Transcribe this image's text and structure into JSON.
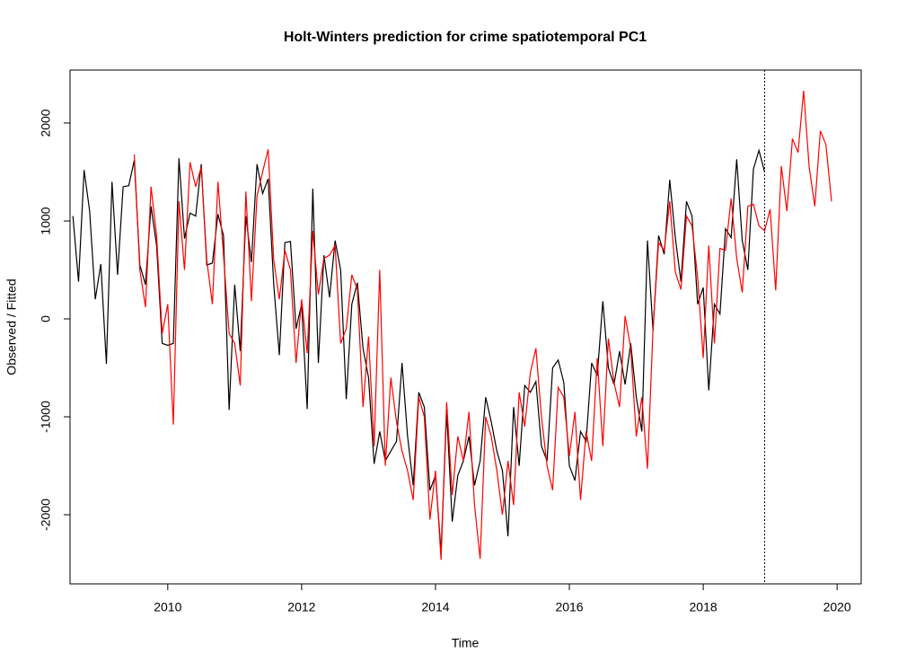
{
  "chart_data": {
    "type": "line",
    "title": "Holt-Winters prediction for crime spatiotemporal PC1",
    "x_label": "Time",
    "y_label": "Observed / Fitted",
    "xlim": [
      2008.54,
      2020.36
    ],
    "ylim": [
      -2706,
      2541
    ],
    "xticks": [
      2010,
      2012,
      2014,
      2016,
      2018,
      2020
    ],
    "yticks": [
      -2000,
      -1000,
      0,
      1000,
      2000
    ],
    "vline": 2018.917,
    "series": [
      {
        "color": "#000000",
        "x": [
          2008.583,
          2008.667,
          2008.75,
          2008.833,
          2008.917,
          2009.0,
          2009.083,
          2009.167,
          2009.25,
          2009.333,
          2009.417,
          2009.5,
          2009.583,
          2009.667,
          2009.75,
          2009.833,
          2009.917,
          2010.0,
          2010.083,
          2010.167,
          2010.25,
          2010.333,
          2010.417,
          2010.5,
          2010.583,
          2010.667,
          2010.75,
          2010.833,
          2010.917,
          2011.0,
          2011.083,
          2011.167,
          2011.25,
          2011.333,
          2011.417,
          2011.5,
          2011.583,
          2011.667,
          2011.75,
          2011.833,
          2011.917,
          2012.0,
          2012.083,
          2012.167,
          2012.25,
          2012.333,
          2012.417,
          2012.5,
          2012.583,
          2012.667,
          2012.75,
          2012.833,
          2012.917,
          2013.0,
          2013.083,
          2013.167,
          2013.25,
          2013.333,
          2013.417,
          2013.5,
          2013.583,
          2013.667,
          2013.75,
          2013.833,
          2013.917,
          2014.0,
          2014.083,
          2014.167,
          2014.25,
          2014.333,
          2014.417,
          2014.5,
          2014.583,
          2014.667,
          2014.75,
          2014.833,
          2014.917,
          2015.0,
          2015.083,
          2015.167,
          2015.25,
          2015.333,
          2015.417,
          2015.5,
          2015.583,
          2015.667,
          2015.75,
          2015.833,
          2015.917,
          2016.0,
          2016.083,
          2016.167,
          2016.25,
          2016.333,
          2016.417,
          2016.5,
          2016.583,
          2016.667,
          2016.75,
          2016.833,
          2016.917,
          2017.0,
          2017.083,
          2017.167,
          2017.25,
          2017.333,
          2017.417,
          2017.5,
          2017.583,
          2017.667,
          2017.75,
          2017.833,
          2017.917,
          2018.0,
          2018.083,
          2018.167,
          2018.25,
          2018.333,
          2018.417,
          2018.5,
          2018.583,
          2018.667,
          2018.75,
          2018.833,
          2018.917
        ],
        "values": [
          1050,
          380,
          1520,
          1100,
          200,
          560,
          -460,
          1400,
          450,
          1350,
          1360,
          1620,
          550,
          350,
          1150,
          750,
          -250,
          -270,
          -250,
          1640,
          820,
          1080,
          1050,
          1580,
          550,
          570,
          1070,
          850,
          -930,
          350,
          -330,
          1050,
          580,
          1580,
          1280,
          1430,
          350,
          -370,
          780,
          790,
          -100,
          150,
          -920,
          1330,
          -450,
          650,
          220,
          800,
          500,
          -820,
          150,
          370,
          -300,
          -600,
          -1480,
          -1150,
          -1450,
          -1350,
          -1250,
          -450,
          -1200,
          -1700,
          -750,
          -900,
          -1750,
          -1600,
          -2380,
          -950,
          -2070,
          -1600,
          -1450,
          -1200,
          -1700,
          -1450,
          -800,
          -1050,
          -1350,
          -1550,
          -2220,
          -900,
          -1500,
          -680,
          -750,
          -640,
          -1300,
          -1450,
          -500,
          -420,
          -650,
          -1500,
          -1650,
          -1150,
          -1250,
          -450,
          -580,
          180,
          -500,
          -670,
          -330,
          -670,
          -250,
          -800,
          -1150,
          800,
          -120,
          850,
          660,
          1420,
          830,
          380,
          1200,
          1050,
          150,
          320,
          -730,
          150,
          50,
          920,
          830,
          1630,
          800,
          500,
          1530,
          1720,
          1500
        ]
      },
      {
        "color": "#ff0000",
        "x": [
          2009.5,
          2009.583,
          2009.667,
          2009.75,
          2009.833,
          2009.917,
          2010.0,
          2010.083,
          2010.167,
          2010.25,
          2010.333,
          2010.417,
          2010.5,
          2010.583,
          2010.667,
          2010.75,
          2010.833,
          2010.917,
          2011.0,
          2011.083,
          2011.167,
          2011.25,
          2011.333,
          2011.417,
          2011.5,
          2011.583,
          2011.667,
          2011.75,
          2011.833,
          2011.917,
          2012.0,
          2012.083,
          2012.167,
          2012.25,
          2012.333,
          2012.417,
          2012.5,
          2012.583,
          2012.667,
          2012.75,
          2012.833,
          2012.917,
          2013.0,
          2013.083,
          2013.167,
          2013.25,
          2013.333,
          2013.417,
          2013.5,
          2013.583,
          2013.667,
          2013.75,
          2013.833,
          2013.917,
          2014.0,
          2014.083,
          2014.167,
          2014.25,
          2014.333,
          2014.417,
          2014.5,
          2014.583,
          2014.667,
          2014.75,
          2014.833,
          2014.917,
          2015.0,
          2015.083,
          2015.167,
          2015.25,
          2015.333,
          2015.417,
          2015.5,
          2015.583,
          2015.667,
          2015.75,
          2015.833,
          2015.917,
          2016.0,
          2016.083,
          2016.167,
          2016.25,
          2016.333,
          2016.417,
          2016.5,
          2016.583,
          2016.667,
          2016.75,
          2016.833,
          2016.917,
          2017.0,
          2017.083,
          2017.167,
          2017.25,
          2017.333,
          2017.417,
          2017.5,
          2017.583,
          2017.667,
          2017.75,
          2017.833,
          2017.917,
          2018.0,
          2018.083,
          2018.167,
          2018.25,
          2018.333,
          2018.417,
          2018.5,
          2018.583,
          2018.667,
          2018.75,
          2018.833,
          2018.917,
          2019.0,
          2019.083,
          2019.167,
          2019.25,
          2019.333,
          2019.417,
          2019.5,
          2019.583,
          2019.667,
          2019.75,
          2019.833,
          2019.917
        ],
        "values": [
          1680,
          500,
          120,
          1350,
          850,
          -150,
          150,
          -1080,
          1200,
          500,
          1600,
          1350,
          1550,
          600,
          150,
          1400,
          650,
          -150,
          -250,
          -680,
          1300,
          180,
          1250,
          1500,
          1730,
          600,
          200,
          700,
          500,
          -450,
          200,
          -350,
          900,
          250,
          620,
          650,
          750,
          -250,
          -100,
          450,
          300,
          -900,
          -180,
          -1300,
          500,
          -1500,
          -600,
          -1050,
          -1350,
          -1550,
          -1850,
          -800,
          -1000,
          -2050,
          -1550,
          -2460,
          -850,
          -1800,
          -1200,
          -1450,
          -950,
          -1900,
          -2450,
          -1000,
          -1200,
          -1550,
          -2000,
          -1450,
          -1900,
          -750,
          -1100,
          -550,
          -300,
          -1000,
          -1500,
          -1750,
          -700,
          -800,
          -1400,
          -950,
          -1850,
          -1150,
          -1450,
          -400,
          -1300,
          -200,
          -650,
          -900,
          30,
          -300,
          -1200,
          -800,
          -1530,
          -100,
          780,
          700,
          1200,
          480,
          300,
          1050,
          950,
          420,
          -400,
          750,
          -250,
          720,
          700,
          1230,
          620,
          270,
          1150,
          1170,
          950,
          900,
          1120,
          290,
          1560,
          1100,
          1840,
          1700,
          2330,
          1550,
          1150,
          1920,
          1780,
          1200
        ]
      }
    ]
  }
}
